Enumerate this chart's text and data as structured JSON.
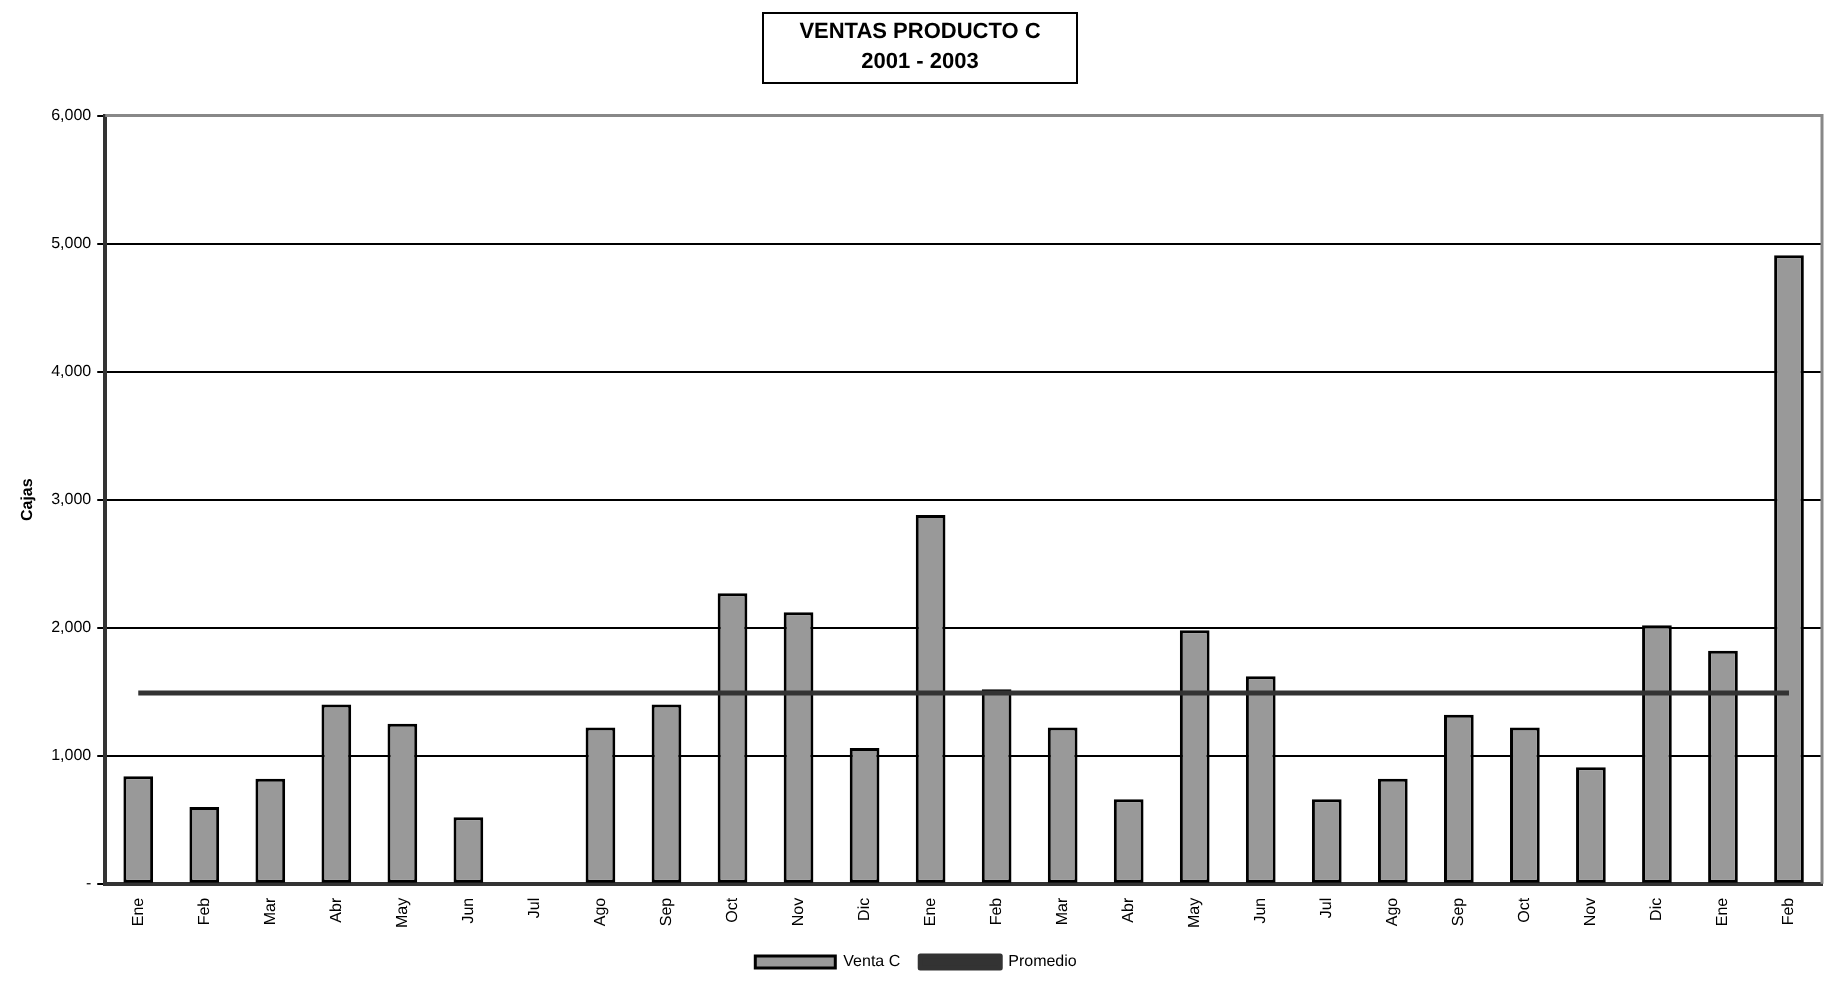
{
  "chart_data": {
    "type": "bar",
    "title": "VENTAS PRODUCTO C",
    "subtitle": "2001 - 2003",
    "ylabel": "Cajas",
    "categories": [
      "Ene",
      "Feb",
      "Mar",
      "Abr",
      "May",
      "Jun",
      "Jul",
      "Ago",
      "Sep",
      "Oct",
      "Nov",
      "Dic",
      "Ene",
      "Feb",
      "Mar",
      "Abr",
      "May",
      "Jun",
      "Jul",
      "Ago",
      "Sep",
      "Oct",
      "Nov",
      "Dic",
      "Ene",
      "Feb"
    ],
    "series": [
      {
        "name": "Venta C",
        "color": "#999999",
        "values": [
          840,
          600,
          820,
          1400,
          1250,
          520,
          0,
          1220,
          1400,
          2270,
          2120,
          1060,
          2880,
          1520,
          1220,
          660,
          1980,
          1620,
          660,
          820,
          1320,
          1220,
          910,
          2020,
          1820,
          4910
        ]
      },
      {
        "name": "Promedio",
        "type": "line",
        "color": "#333333",
        "values": [
          1490,
          1490,
          1490,
          1490,
          1490,
          1490,
          1490,
          1490,
          1490,
          1490,
          1490,
          1490,
          1490,
          1490,
          1490,
          1490,
          1490,
          1490,
          1490,
          1490,
          1490,
          1490,
          1490,
          1490,
          1490,
          1490
        ]
      }
    ],
    "ylim": [
      0,
      6000
    ],
    "yticks": [
      {
        "value": 0,
        "label": "-"
      },
      {
        "value": 1000,
        "label": "1,000"
      },
      {
        "value": 2000,
        "label": "2,000"
      },
      {
        "value": 3000,
        "label": "3,000"
      },
      {
        "value": 4000,
        "label": "4,000"
      },
      {
        "value": 5000,
        "label": "5,000"
      },
      {
        "value": 6000,
        "label": "6,000"
      }
    ],
    "grid": "y",
    "legend": "bottom",
    "marker": "none",
    "line_style": "solid"
  }
}
